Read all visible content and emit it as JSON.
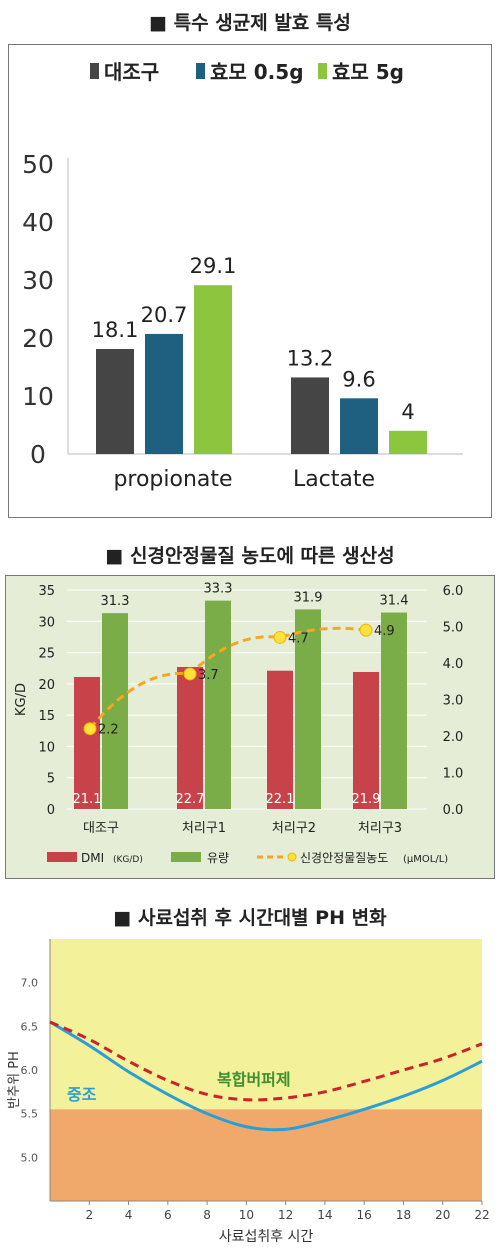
{
  "chart_data": [
    {
      "type": "bar",
      "title": "■ 특수 생균제 발효 특성",
      "categories": [
        "propionate",
        "Lactate"
      ],
      "series": [
        {
          "name": "대조구",
          "values": [
            18.1,
            13.2
          ],
          "color": "#454545"
        },
        {
          "name": "효모 0.5g",
          "values": [
            20.7,
            9.6
          ],
          "color": "#1f5f80"
        },
        {
          "name": "효모 5g",
          "values": [
            29.1,
            4
          ],
          "color": "#8cc63f"
        }
      ],
      "data_labels": [
        [
          "18.1",
          "20.7",
          "29.1"
        ],
        [
          "13.2",
          "9.6",
          "4"
        ]
      ],
      "yticks": [
        "0",
        "10",
        "20",
        "30",
        "40",
        "50"
      ],
      "ylim": [
        0,
        50
      ],
      "grid": false,
      "legend": "top"
    },
    {
      "type": "bar",
      "title": "■ 신경안정물질 농도에 따른 생산성",
      "categories": [
        "대조구",
        "처리구1",
        "처리구2",
        "처리구3"
      ],
      "series": [
        {
          "name": "DMI",
          "unit": "(KG/D)",
          "values": [
            21.1,
            22.7,
            22.1,
            21.9
          ],
          "labels": [
            "21.1",
            "22.7",
            "22.1",
            "21.9"
          ],
          "color": "#c8424a"
        },
        {
          "name": "유량",
          "values": [
            31.3,
            33.3,
            31.9,
            31.4
          ],
          "labels": [
            "31.3",
            "33.3",
            "31.9",
            "31.4"
          ],
          "color": "#7aad47"
        },
        {
          "name": "신경안정물질농도",
          "unit": "(μMOL/L)",
          "type": "line",
          "axis": "right",
          "values": [
            2.2,
            3.7,
            4.7,
            4.9
          ],
          "labels": [
            "2.2",
            "3.7",
            "4.7",
            "4.9"
          ],
          "color": "#f5a623"
        }
      ],
      "ylabel": "KG/D",
      "yticks": [
        "0",
        "5",
        "10",
        "15",
        "20",
        "25",
        "30",
        "35"
      ],
      "ylim": [
        0,
        35
      ],
      "y2ticks": [
        "0.0",
        "1.0",
        "2.0",
        "3.0",
        "4.0",
        "5.0",
        "6.0"
      ],
      "y2lim": [
        0,
        6
      ],
      "grid": true,
      "legend": "bottom",
      "background": "#e5edd6"
    },
    {
      "type": "line",
      "title": "■ 사료섭취 후 시간대별 PH 변화",
      "xlabel": "사료섭취후 시간",
      "ylabel": "반추위 PH",
      "xticks": [
        "2",
        "4",
        "6",
        "8",
        "10",
        "12",
        "14",
        "16",
        "18",
        "20",
        "22"
      ],
      "xlim": [
        0,
        22
      ],
      "yticks": [
        "5.0",
        "5.5",
        "6.0",
        "6.5",
        "7.0"
      ],
      "ylim": [
        4.5,
        7.5
      ],
      "bands": [
        {
          "from": 5.55,
          "to": 7.5,
          "color": "#f3f19a"
        },
        {
          "from": 4.5,
          "to": 5.55,
          "color": "#f0a96a"
        }
      ],
      "series": [
        {
          "name": "중조",
          "style": "solid",
          "color": "#2a9fd6",
          "x": [
            0,
            2,
            4,
            6,
            8,
            10,
            12,
            14,
            16,
            18,
            20,
            22
          ],
          "y": [
            6.55,
            6.28,
            5.98,
            5.72,
            5.5,
            5.35,
            5.32,
            5.42,
            5.55,
            5.7,
            5.88,
            6.1
          ]
        },
        {
          "name": "복합버퍼제",
          "style": "dashed",
          "color": "#cc2229",
          "x": [
            0,
            2,
            4,
            6,
            8,
            10,
            12,
            14,
            16,
            18,
            20,
            22
          ],
          "y": [
            6.55,
            6.35,
            6.1,
            5.88,
            5.72,
            5.66,
            5.68,
            5.75,
            5.87,
            6.0,
            6.13,
            6.3
          ]
        }
      ],
      "grid": false
    }
  ]
}
